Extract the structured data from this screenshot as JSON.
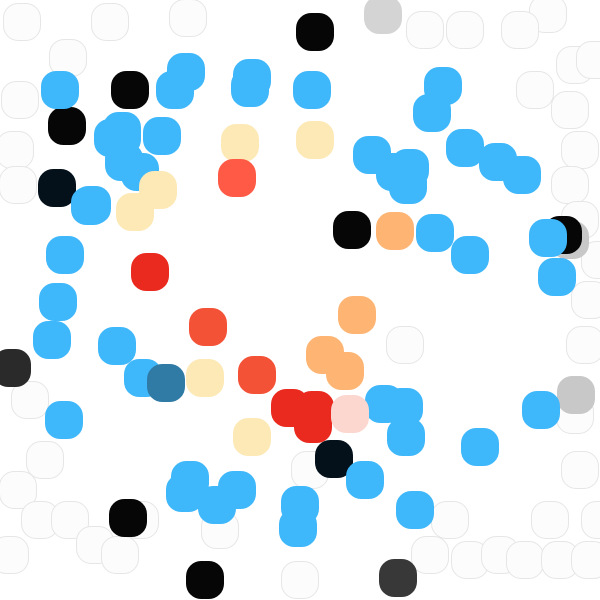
{
  "colors": {
    "sky": "#3fb7fb",
    "steel": "#2f7ba6",
    "black": "#060606",
    "navy": "#04111b",
    "charcoal": "#2a2a2a",
    "dark_gray": "#383838",
    "gray": "#c8c8c8",
    "light_gray": "#d4d4d4",
    "cream": "#fde9b6",
    "peach": "#feb574",
    "red": "#ea2a1f",
    "tomato": "#f45236",
    "coral": "#ff5a46",
    "pale_pink": "#fbd7cf",
    "ghost": "#fcfcfc"
  },
  "dots": [
    {
      "c": "ghost"
    },
    {
      "c": "ghost"
    },
    {
      "c": "ghost"
    },
    {
      "c": "ghost"
    },
    {
      "c": "ghost"
    },
    {
      "c": "ghost"
    },
    {
      "c": "ghost"
    },
    {
      "c": "ghost"
    },
    {
      "c": "ghost"
    },
    {
      "c": "ghost"
    },
    {
      "c": "ghost"
    },
    {
      "c": "ghost"
    },
    {
      "c": "ghost"
    },
    {
      "c": "ghost"
    },
    {
      "c": "ghost"
    },
    {
      "c": "ghost"
    },
    {
      "c": "ghost"
    },
    {
      "c": "ghost"
    },
    {
      "c": "ghost"
    },
    {
      "c": "ghost"
    },
    {
      "c": "ghost"
    },
    {
      "c": "ghost"
    },
    {
      "c": "ghost"
    },
    {
      "c": "ghost"
    },
    {
      "c": "ghost"
    },
    {
      "c": "ghost"
    },
    {
      "c": "ghost"
    },
    {
      "c": "ghost"
    },
    {
      "c": "ghost"
    },
    {
      "c": "ghost"
    },
    {
      "c": "ghost"
    },
    {
      "c": "ghost"
    },
    {
      "c": "ghost"
    },
    {
      "c": "ghost"
    },
    {
      "c": "ghost"
    },
    {
      "c": "ghost"
    },
    {
      "c": "ghost"
    },
    {
      "c": "ghost"
    },
    {
      "c": "ghost"
    },
    {
      "c": "ghost"
    },
    {
      "c": "ghost"
    },
    {
      "c": "ghost"
    },
    {
      "c": "ghost"
    },
    {
      "c": "ghost"
    },
    {
      "c": "ghost"
    },
    {
      "c": "light_gray"
    },
    {
      "c": "gray"
    },
    {
      "c": "gray"
    },
    {
      "c": "black"
    },
    {
      "c": "black"
    },
    {
      "c": "black"
    },
    {
      "c": "navy"
    },
    {
      "c": "black"
    },
    {
      "c": "black"
    },
    {
      "c": "charcoal"
    },
    {
      "c": "navy"
    },
    {
      "c": "black"
    },
    {
      "c": "black"
    },
    {
      "c": "dark_gray"
    },
    {
      "c": "sky"
    },
    {
      "c": "sky"
    },
    {
      "c": "sky"
    },
    {
      "c": "sky"
    },
    {
      "c": "sky"
    },
    {
      "c": "sky"
    },
    {
      "c": "sky"
    },
    {
      "c": "sky"
    },
    {
      "c": "sky"
    },
    {
      "c": "sky"
    },
    {
      "c": "sky"
    },
    {
      "c": "sky"
    },
    {
      "c": "sky"
    },
    {
      "c": "sky"
    },
    {
      "c": "sky"
    },
    {
      "c": "sky"
    },
    {
      "c": "sky"
    },
    {
      "c": "sky"
    },
    {
      "c": "sky"
    },
    {
      "c": "sky"
    },
    {
      "c": "sky"
    },
    {
      "c": "sky"
    },
    {
      "c": "sky"
    },
    {
      "c": "sky"
    },
    {
      "c": "sky"
    },
    {
      "c": "sky"
    },
    {
      "c": "sky"
    },
    {
      "c": "sky"
    },
    {
      "c": "sky"
    },
    {
      "c": "sky"
    },
    {
      "c": "sky"
    },
    {
      "c": "sky"
    },
    {
      "c": "sky"
    },
    {
      "c": "sky"
    },
    {
      "c": "sky"
    },
    {
      "c": "sky"
    },
    {
      "c": "sky"
    },
    {
      "c": "sky"
    },
    {
      "c": "sky"
    },
    {
      "c": "sky"
    },
    {
      "c": "sky"
    },
    {
      "c": "sky"
    },
    {
      "c": "sky"
    },
    {
      "c": "sky"
    },
    {
      "c": "sky"
    },
    {
      "c": "sky"
    },
    {
      "c": "steel"
    },
    {
      "c": "cream"
    },
    {
      "c": "cream"
    },
    {
      "c": "cream"
    },
    {
      "c": "cream"
    },
    {
      "c": "cream"
    },
    {
      "c": "cream"
    },
    {
      "c": "peach"
    },
    {
      "c": "peach"
    },
    {
      "c": "peach"
    },
    {
      "c": "peach"
    },
    {
      "c": "red"
    },
    {
      "c": "red"
    },
    {
      "c": "red"
    },
    {
      "c": "red"
    },
    {
      "c": "tomato"
    },
    {
      "c": "tomato"
    },
    {
      "c": "coral"
    },
    {
      "c": "pale_pink"
    }
  ]
}
